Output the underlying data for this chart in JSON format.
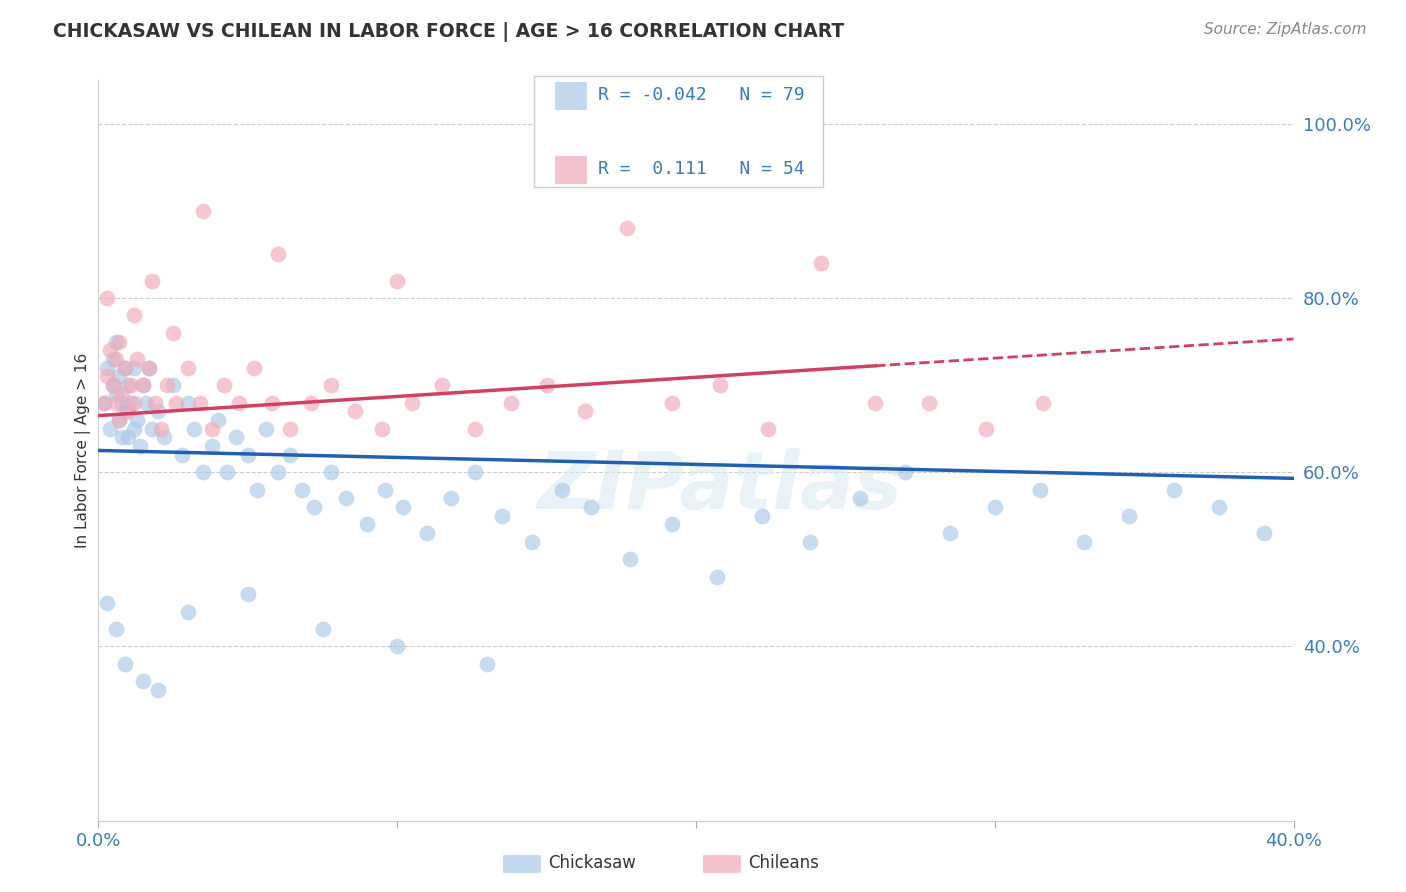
{
  "title": "CHICKASAW VS CHILEAN IN LABOR FORCE | AGE > 16 CORRELATION CHART",
  "source_text": "Source: ZipAtlas.com",
  "ylabel": "In Labor Force | Age > 16",
  "xlim": [
    0.0,
    0.4
  ],
  "ylim": [
    0.2,
    1.05
  ],
  "ytick_positions": [
    0.4,
    0.6,
    0.8,
    1.0
  ],
  "yticklabels_right": [
    "40.0%",
    "60.0%",
    "80.0%",
    "100.0%"
  ],
  "grid_color": "#cccccc",
  "background_color": "#ffffff",
  "chickasaw_color": "#a8c8e8",
  "chilean_color": "#f0a8b8",
  "chickasaw_line_color": "#2060b0",
  "chilean_line_color": "#d04060",
  "R_chickasaw": -0.042,
  "N_chickasaw": 79,
  "R_chilean": 0.111,
  "N_chilean": 54,
  "watermark": "ZIPatlas",
  "chickasaw_x": [
    0.002,
    0.003,
    0.004,
    0.005,
    0.005,
    0.006,
    0.006,
    0.007,
    0.007,
    0.008,
    0.008,
    0.009,
    0.009,
    0.01,
    0.01,
    0.011,
    0.012,
    0.012,
    0.013,
    0.014,
    0.015,
    0.016,
    0.017,
    0.018,
    0.02,
    0.022,
    0.025,
    0.028,
    0.03,
    0.032,
    0.035,
    0.038,
    0.04,
    0.043,
    0.046,
    0.05,
    0.053,
    0.056,
    0.06,
    0.064,
    0.068,
    0.072,
    0.078,
    0.083,
    0.09,
    0.096,
    0.102,
    0.11,
    0.118,
    0.126,
    0.135,
    0.145,
    0.155,
    0.165,
    0.178,
    0.192,
    0.207,
    0.222,
    0.238,
    0.255,
    0.27,
    0.285,
    0.3,
    0.315,
    0.33,
    0.345,
    0.36,
    0.375,
    0.39,
    0.003,
    0.006,
    0.009,
    0.015,
    0.02,
    0.03,
    0.05,
    0.075,
    0.1,
    0.13
  ],
  "chickasaw_y": [
    0.68,
    0.72,
    0.65,
    0.7,
    0.73,
    0.69,
    0.75,
    0.66,
    0.71,
    0.64,
    0.68,
    0.72,
    0.67,
    0.7,
    0.64,
    0.68,
    0.65,
    0.72,
    0.66,
    0.63,
    0.7,
    0.68,
    0.72,
    0.65,
    0.67,
    0.64,
    0.7,
    0.62,
    0.68,
    0.65,
    0.6,
    0.63,
    0.66,
    0.6,
    0.64,
    0.62,
    0.58,
    0.65,
    0.6,
    0.62,
    0.58,
    0.56,
    0.6,
    0.57,
    0.54,
    0.58,
    0.56,
    0.53,
    0.57,
    0.6,
    0.55,
    0.52,
    0.58,
    0.56,
    0.5,
    0.54,
    0.48,
    0.55,
    0.52,
    0.57,
    0.6,
    0.53,
    0.56,
    0.58,
    0.52,
    0.55,
    0.58,
    0.56,
    0.53,
    0.45,
    0.42,
    0.38,
    0.36,
    0.35,
    0.44,
    0.46,
    0.42,
    0.4,
    0.38
  ],
  "chilean_x": [
    0.002,
    0.003,
    0.004,
    0.005,
    0.006,
    0.006,
    0.007,
    0.008,
    0.009,
    0.01,
    0.011,
    0.012,
    0.013,
    0.015,
    0.017,
    0.019,
    0.021,
    0.023,
    0.026,
    0.03,
    0.034,
    0.038,
    0.042,
    0.047,
    0.052,
    0.058,
    0.064,
    0.071,
    0.078,
    0.086,
    0.095,
    0.105,
    0.115,
    0.126,
    0.138,
    0.15,
    0.163,
    0.177,
    0.192,
    0.208,
    0.224,
    0.242,
    0.26,
    0.278,
    0.297,
    0.316,
    0.003,
    0.007,
    0.012,
    0.018,
    0.025,
    0.035,
    0.06,
    0.1
  ],
  "chilean_y": [
    0.68,
    0.71,
    0.74,
    0.7,
    0.68,
    0.73,
    0.66,
    0.69,
    0.72,
    0.67,
    0.7,
    0.68,
    0.73,
    0.7,
    0.72,
    0.68,
    0.65,
    0.7,
    0.68,
    0.72,
    0.68,
    0.65,
    0.7,
    0.68,
    0.72,
    0.68,
    0.65,
    0.68,
    0.7,
    0.67,
    0.65,
    0.68,
    0.7,
    0.65,
    0.68,
    0.7,
    0.67,
    0.88,
    0.68,
    0.7,
    0.65,
    0.84,
    0.68,
    0.68,
    0.65,
    0.68,
    0.8,
    0.75,
    0.78,
    0.82,
    0.76,
    0.9,
    0.85,
    0.82
  ],
  "chilean_line_x_solid_end": 0.26,
  "chickasaw_line_intercept": 0.625,
  "chickasaw_line_slope": -0.08,
  "chilean_line_intercept": 0.665,
  "chilean_line_slope": 0.22
}
